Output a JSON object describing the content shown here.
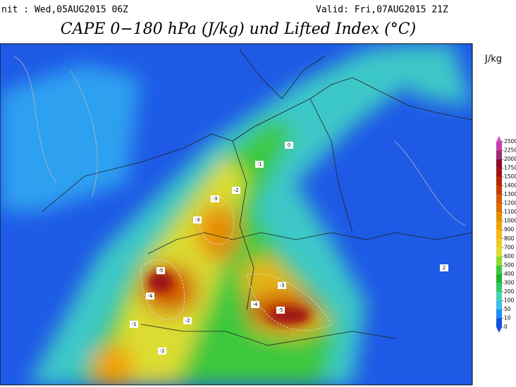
{
  "header": {
    "init": "nit : Wed,05AUG2015 06Z",
    "valid": "Valid: Fri,07AUG2015 21Z",
    "title": "CAPE 0−180 hPa (J/kg) und Lifted Index (°C)"
  },
  "colorbar": {
    "unit": "J/kg",
    "levels": [
      0,
      10,
      50,
      100,
      200,
      300,
      400,
      500,
      600,
      700,
      800,
      900,
      1000,
      1100,
      1200,
      1300,
      1400,
      1500,
      1750,
      2000,
      2250,
      2500
    ],
    "colors": [
      "#1450dc",
      "#1e8cf0",
      "#3cbef0",
      "#46d2b4",
      "#32c864",
      "#1eb432",
      "#3cc83c",
      "#8cdc32",
      "#dcdc32",
      "#f0c828",
      "#fab414",
      "#f0a000",
      "#e68c00",
      "#dc6e00",
      "#d25a00",
      "#c83c00",
      "#b42800",
      "#a01414",
      "#8c0a28",
      "#a0286e",
      "#c83cb4"
    ],
    "arrow_low": "#1450dc",
    "arrow_high": "#dc50c8"
  },
  "map_labels": [
    "-5",
    "-4",
    "-3",
    "-3",
    "-2",
    "-1",
    "-4",
    "-5",
    "-3",
    "-2",
    "0",
    "2",
    "-1",
    "-2"
  ]
}
